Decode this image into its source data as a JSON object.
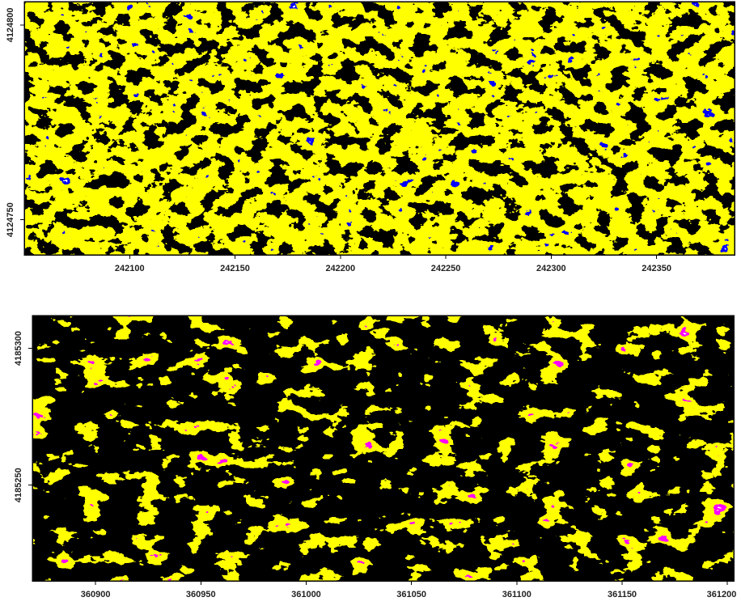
{
  "chart_data": [
    {
      "type": "raster",
      "xlim": [
        242050,
        242387
      ],
      "xticks": [
        242100,
        242150,
        242200,
        242250,
        242300,
        242350
      ],
      "ylim": [
        4124741,
        4124806
      ],
      "yticks": [
        4124750,
        4124800
      ]
    },
    {
      "type": "raster",
      "xlim": [
        360870,
        361203
      ],
      "xticks": [
        360900,
        360950,
        361000,
        361050,
        361100,
        361150,
        361200
      ],
      "ylim": [
        4185215,
        4185312
      ],
      "yticks": [
        4185250,
        4185300
      ]
    }
  ]
}
